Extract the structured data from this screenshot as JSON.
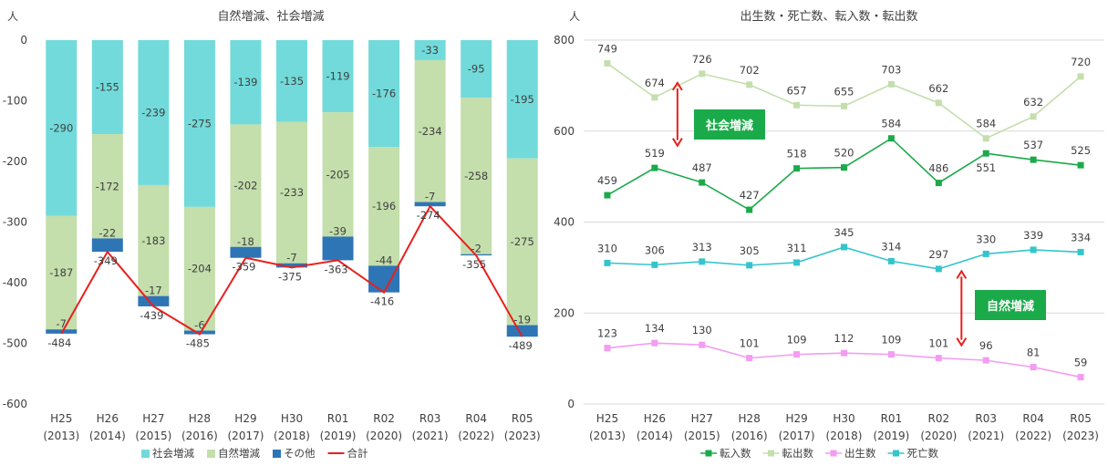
{
  "chart_data": [
    {
      "type": "bar",
      "stacked": true,
      "title": "自然増減、社会増減",
      "unit_label": "人",
      "ylim": [
        -600,
        0
      ],
      "yticks": [
        0,
        -100,
        -200,
        -300,
        -400,
        -500,
        -600
      ],
      "grid": false,
      "legend_position": "bottom",
      "categories": [
        "H25",
        "H26",
        "H27",
        "H28",
        "H29",
        "H30",
        "R01",
        "R02",
        "R03",
        "R04",
        "R05"
      ],
      "category_years": [
        "(2013)",
        "(2014)",
        "(2015)",
        "(2016)",
        "(2017)",
        "(2018)",
        "(2019)",
        "(2020)",
        "(2021)",
        "(2022)",
        "(2023)"
      ],
      "series": [
        {
          "name": "社会増減",
          "color": "#72DADA",
          "values": [
            -290,
            -155,
            -239,
            -275,
            -139,
            -135,
            -119,
            -176,
            -33,
            -95,
            -195
          ]
        },
        {
          "name": "自然増減",
          "color": "#C4DEAC",
          "values": [
            -187,
            -172,
            -183,
            -204,
            -202,
            -233,
            -205,
            -196,
            -234,
            -258,
            -275
          ]
        },
        {
          "name": "その他",
          "color": "#2E75B6",
          "values": [
            -7,
            -22,
            -17,
            -6,
            -18,
            -7,
            -39,
            -44,
            -7,
            -2,
            -19
          ]
        }
      ],
      "total": {
        "name": "合計",
        "color": "#E8201E",
        "values": [
          -484,
          -349,
          -439,
          -485,
          -359,
          -375,
          -363,
          -416,
          -274,
          -355,
          -489
        ]
      }
    },
    {
      "type": "line",
      "title": "出生数・死亡数、転入数・転出数",
      "unit_label": "人",
      "ylim": [
        0,
        800
      ],
      "yticks": [
        0,
        200,
        400,
        600,
        800
      ],
      "grid": true,
      "legend_position": "bottom",
      "categories": [
        "H25",
        "H26",
        "H27",
        "H28",
        "H29",
        "H30",
        "R01",
        "R02",
        "R03",
        "R04",
        "R05"
      ],
      "category_years": [
        "(2013)",
        "(2014)",
        "(2015)",
        "(2016)",
        "(2017)",
        "(2018)",
        "(2019)",
        "(2020)",
        "(2021)",
        "(2022)",
        "(2023)"
      ],
      "series": [
        {
          "name": "転入数",
          "color": "#1BAA4A",
          "values": [
            459,
            519,
            487,
            427,
            518,
            520,
            584,
            486,
            551,
            537,
            525
          ]
        },
        {
          "name": "転出数",
          "color": "#C4DEAC",
          "values": [
            749,
            674,
            726,
            702,
            657,
            655,
            703,
            662,
            584,
            632,
            720
          ]
        },
        {
          "name": "出生数",
          "color": "#F39CF0",
          "values": [
            123,
            134,
            130,
            101,
            109,
            112,
            109,
            101,
            96,
            81,
            59
          ]
        },
        {
          "name": "死亡数",
          "color": "#33C5CB",
          "values": [
            310,
            306,
            313,
            305,
            311,
            345,
            314,
            297,
            330,
            339,
            334
          ]
        }
      ],
      "annotations": [
        {
          "text": "社会増減",
          "color": "#1BAA4A"
        },
        {
          "text": "自然増減",
          "color": "#1BAA4A"
        }
      ]
    }
  ]
}
